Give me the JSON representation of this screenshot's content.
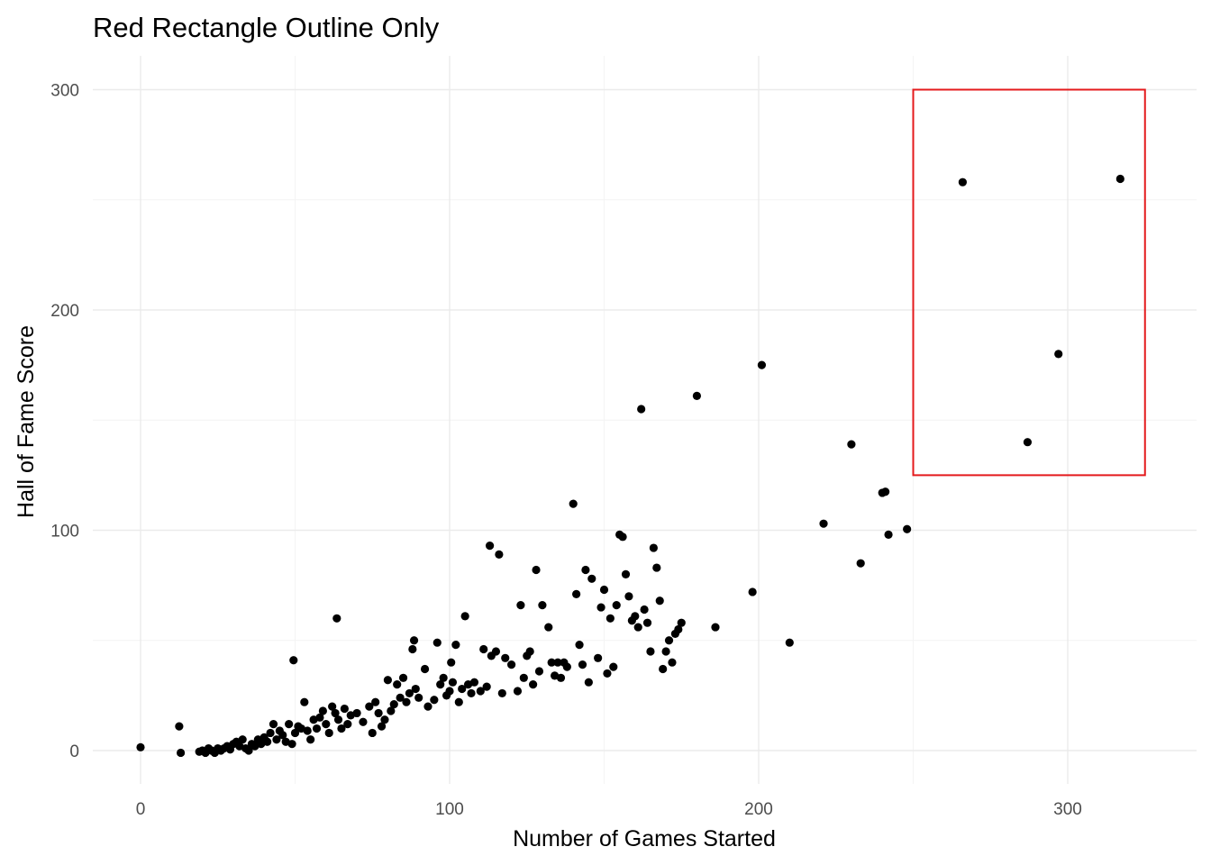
{
  "chart_data": {
    "type": "scatter",
    "title": "Red Rectangle Outline Only",
    "xlabel": "Number of Games Started",
    "ylabel": "Hall of Fame Score",
    "xlim": [
      -15,
      345
    ],
    "ylim": [
      -15,
      315
    ],
    "x_ticks": [
      0,
      100,
      200,
      300
    ],
    "y_ticks": [
      0,
      100,
      200,
      300
    ],
    "x_tick_labels": [
      "0",
      "100",
      "200",
      "300"
    ],
    "y_tick_labels": [
      "0",
      "100",
      "200",
      "300"
    ],
    "grid": true,
    "legend": "none",
    "point_color": "#000000",
    "highlight_rect": {
      "xmin": 250,
      "xmax": 325,
      "ymin": 125,
      "ymax": 300,
      "color": "#e41a1c"
    },
    "points": [
      [
        0,
        1.5
      ],
      [
        12.5,
        11
      ],
      [
        13,
        -1
      ],
      [
        19,
        -0.5
      ],
      [
        20,
        0
      ],
      [
        21,
        -1
      ],
      [
        22,
        1
      ],
      [
        23,
        0
      ],
      [
        24,
        -1
      ],
      [
        25,
        1
      ],
      [
        26,
        0
      ],
      [
        27,
        1
      ],
      [
        28,
        2
      ],
      [
        29,
        0.5
      ],
      [
        30,
        3
      ],
      [
        31,
        4
      ],
      [
        32,
        2
      ],
      [
        33,
        5
      ],
      [
        34,
        1
      ],
      [
        35,
        0
      ],
      [
        36,
        3
      ],
      [
        37,
        2
      ],
      [
        38,
        5
      ],
      [
        39,
        3
      ],
      [
        40,
        6
      ],
      [
        41,
        4
      ],
      [
        42,
        8
      ],
      [
        43,
        12
      ],
      [
        44,
        5
      ],
      [
        45,
        9
      ],
      [
        46,
        7
      ],
      [
        47,
        4
      ],
      [
        48,
        12
      ],
      [
        49,
        3
      ],
      [
        49.5,
        41
      ],
      [
        50,
        8
      ],
      [
        51,
        11
      ],
      [
        52,
        10
      ],
      [
        53,
        22
      ],
      [
        54,
        9
      ],
      [
        55,
        5
      ],
      [
        56,
        14
      ],
      [
        57,
        10
      ],
      [
        58,
        15
      ],
      [
        59,
        18
      ],
      [
        60,
        12
      ],
      [
        61,
        8
      ],
      [
        62,
        20
      ],
      [
        63,
        17
      ],
      [
        63.5,
        60
      ],
      [
        64,
        14
      ],
      [
        65,
        10
      ],
      [
        66,
        19
      ],
      [
        67,
        12
      ],
      [
        68,
        16
      ],
      [
        70,
        17
      ],
      [
        72,
        13
      ],
      [
        74,
        20
      ],
      [
        75,
        8
      ],
      [
        76,
        22
      ],
      [
        77,
        17
      ],
      [
        78,
        11
      ],
      [
        79,
        14
      ],
      [
        80,
        32
      ],
      [
        81,
        18
      ],
      [
        82,
        21
      ],
      [
        83,
        30
      ],
      [
        84,
        24
      ],
      [
        85,
        33
      ],
      [
        86,
        22
      ],
      [
        87,
        26
      ],
      [
        88,
        46
      ],
      [
        88.5,
        50
      ],
      [
        89,
        28
      ],
      [
        90,
        24
      ],
      [
        92,
        37
      ],
      [
        93,
        20
      ],
      [
        95,
        23
      ],
      [
        96,
        49
      ],
      [
        97,
        30
      ],
      [
        98,
        33
      ],
      [
        99,
        25
      ],
      [
        100,
        27
      ],
      [
        100.5,
        40
      ],
      [
        101,
        31
      ],
      [
        102,
        48
      ],
      [
        103,
        22
      ],
      [
        104,
        28
      ],
      [
        105,
        61
      ],
      [
        106,
        30
      ],
      [
        107,
        26
      ],
      [
        108,
        31
      ],
      [
        110,
        27
      ],
      [
        111,
        46
      ],
      [
        112,
        29
      ],
      [
        113,
        93
      ],
      [
        113.5,
        43
      ],
      [
        115,
        45
      ],
      [
        116,
        89
      ],
      [
        117,
        26
      ],
      [
        118,
        42
      ],
      [
        120,
        39
      ],
      [
        122,
        27
      ],
      [
        123,
        66
      ],
      [
        124,
        33
      ],
      [
        125,
        43
      ],
      [
        126,
        45
      ],
      [
        127,
        30
      ],
      [
        128,
        82
      ],
      [
        129,
        36
      ],
      [
        130,
        66
      ],
      [
        132,
        56
      ],
      [
        133,
        40
      ],
      [
        134,
        34
      ],
      [
        135,
        40
      ],
      [
        136,
        33
      ],
      [
        137,
        40
      ],
      [
        138,
        38
      ],
      [
        140,
        112
      ],
      [
        141,
        71
      ],
      [
        142,
        48
      ],
      [
        143,
        39
      ],
      [
        144,
        82
      ],
      [
        145,
        31
      ],
      [
        146,
        78
      ],
      [
        148,
        42
      ],
      [
        149,
        65
      ],
      [
        150,
        73
      ],
      [
        151,
        35
      ],
      [
        152,
        60
      ],
      [
        153,
        38
      ],
      [
        154,
        66
      ],
      [
        155,
        98
      ],
      [
        156,
        97
      ],
      [
        157,
        80
      ],
      [
        158,
        70
      ],
      [
        159,
        59
      ],
      [
        160,
        61
      ],
      [
        161,
        56
      ],
      [
        162,
        155
      ],
      [
        163,
        64
      ],
      [
        164,
        58
      ],
      [
        165,
        45
      ],
      [
        166,
        92
      ],
      [
        167,
        83
      ],
      [
        168,
        68
      ],
      [
        169,
        37
      ],
      [
        170,
        45
      ],
      [
        171,
        50
      ],
      [
        172,
        40
      ],
      [
        173,
        53
      ],
      [
        174,
        55
      ],
      [
        175,
        58
      ],
      [
        180,
        161
      ],
      [
        186,
        56
      ],
      [
        198,
        72
      ],
      [
        201,
        175
      ],
      [
        210,
        49
      ],
      [
        221,
        103
      ],
      [
        230,
        139
      ],
      [
        233,
        85
      ],
      [
        240,
        117
      ],
      [
        241,
        117.5
      ],
      [
        242,
        98
      ],
      [
        248,
        100.5
      ],
      [
        266,
        258
      ],
      [
        287,
        140
      ],
      [
        297,
        180
      ],
      [
        317,
        259.5
      ]
    ]
  }
}
